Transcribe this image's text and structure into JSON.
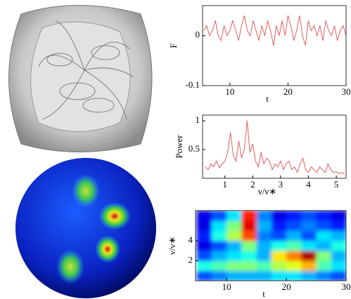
{
  "chart_data": [
    {
      "type": "line",
      "xlabel": "t",
      "ylabel": "F",
      "color": "#e06060",
      "x": [
        5.5,
        6,
        6.5,
        7,
        7.5,
        8,
        8.5,
        9,
        9.5,
        10,
        10.5,
        11,
        11.5,
        12,
        12.5,
        13,
        13.5,
        14,
        14.5,
        15,
        15.5,
        16,
        16.5,
        17,
        17.5,
        18,
        18.5,
        19,
        19.5,
        20,
        20.5,
        21,
        21.5,
        22,
        22.5,
        23,
        23.5,
        24,
        24.5,
        25,
        25.5,
        26,
        26.5,
        27,
        27.5,
        28,
        28.5,
        29,
        29.5,
        30
      ],
      "values": [
        0.01,
        0.02,
        0.0,
        0.01,
        0.03,
        0.0,
        -0.01,
        0.02,
        0.0,
        0.01,
        0.03,
        0.01,
        -0.01,
        0.02,
        0.04,
        0.01,
        0.0,
        0.03,
        0.01,
        -0.01,
        0.02,
        0.0,
        0.03,
        0.01,
        -0.02,
        0.02,
        0.0,
        0.03,
        0.0,
        0.04,
        0.02,
        -0.01,
        0.01,
        0.04,
        0.0,
        -0.02,
        0.03,
        0.01,
        0.02,
        0.0,
        0.02,
        -0.01,
        0.03,
        0.01,
        0.0,
        0.02,
        -0.01,
        0.01,
        0.02,
        0.0
      ],
      "xlim": [
        5.3,
        30
      ],
      "xticks": [
        10,
        20,
        30
      ],
      "ylim": [
        -0.1,
        0.06
      ],
      "yticks": [
        -0.1,
        0
      ]
    },
    {
      "type": "line",
      "xlabel": "ν/ν∗",
      "ylabel": "Power",
      "color": "#e06060",
      "x": [
        0.3,
        0.4,
        0.5,
        0.6,
        0.7,
        0.8,
        0.9,
        1.0,
        1.1,
        1.2,
        1.3,
        1.4,
        1.5,
        1.6,
        1.7,
        1.8,
        1.9,
        2.0,
        2.1,
        2.2,
        2.3,
        2.4,
        2.5,
        2.6,
        2.7,
        2.8,
        2.9,
        3.0,
        3.1,
        3.2,
        3.3,
        3.4,
        3.5,
        3.6,
        3.7,
        3.8,
        3.9,
        4.0,
        4.1,
        4.2,
        4.3,
        4.4,
        4.5,
        4.6,
        4.7,
        4.8,
        4.9,
        5.0,
        5.1,
        5.2,
        5.3
      ],
      "values": [
        0.2,
        0.15,
        0.25,
        0.2,
        0.3,
        0.18,
        0.25,
        0.3,
        0.45,
        0.8,
        0.4,
        0.3,
        0.65,
        0.35,
        0.5,
        1.0,
        0.45,
        0.6,
        0.3,
        0.2,
        0.45,
        0.25,
        0.35,
        0.3,
        0.15,
        0.25,
        0.2,
        0.3,
        0.15,
        0.25,
        0.3,
        0.15,
        0.2,
        0.1,
        0.25,
        0.35,
        0.15,
        0.1,
        0.2,
        0.15,
        0.1,
        0.2,
        0.15,
        0.1,
        0.25,
        0.15,
        0.1,
        0.12,
        0.08,
        0.1,
        0.07
      ],
      "xlim": [
        0.2,
        5.35
      ],
      "xticks": [
        1,
        2,
        3,
        4,
        5
      ],
      "ylim": [
        0,
        1.1
      ],
      "yticks": [
        0.5,
        1
      ]
    },
    {
      "type": "heatmap",
      "xlabel": "t",
      "ylabel": "ν/ν∗",
      "xbins": [
        5,
        7.5,
        10,
        12.5,
        15,
        17.5,
        20,
        22.5,
        25,
        27.5,
        30
      ],
      "ybins": [
        0,
        1,
        2,
        3,
        4,
        5,
        6,
        7
      ],
      "z": [
        [
          0.2,
          0.25,
          0.3,
          0.3,
          0.3,
          0.35,
          0.35,
          0.3,
          0.25,
          0.2
        ],
        [
          0.4,
          0.45,
          0.5,
          0.5,
          0.45,
          0.55,
          0.6,
          0.7,
          0.45,
          0.35
        ],
        [
          0.2,
          0.3,
          0.35,
          0.4,
          0.3,
          0.65,
          0.75,
          0.95,
          0.5,
          0.3
        ],
        [
          0.1,
          0.2,
          0.3,
          0.5,
          0.3,
          0.4,
          0.45,
          0.35,
          0.3,
          0.4
        ],
        [
          0.15,
          0.4,
          0.55,
          0.8,
          0.25,
          0.2,
          0.3,
          0.2,
          0.35,
          0.3
        ],
        [
          0.1,
          0.35,
          0.5,
          0.9,
          0.3,
          0.15,
          0.2,
          0.25,
          0.2,
          0.15
        ],
        [
          0.1,
          0.2,
          0.35,
          0.85,
          0.25,
          0.1,
          0.15,
          0.2,
          0.15,
          0.1
        ]
      ],
      "xlim": [
        4.8,
        30
      ],
      "xticks": [
        10,
        20,
        30
      ],
      "ylim": [
        0,
        7
      ],
      "yticks": [
        2,
        4
      ]
    }
  ]
}
